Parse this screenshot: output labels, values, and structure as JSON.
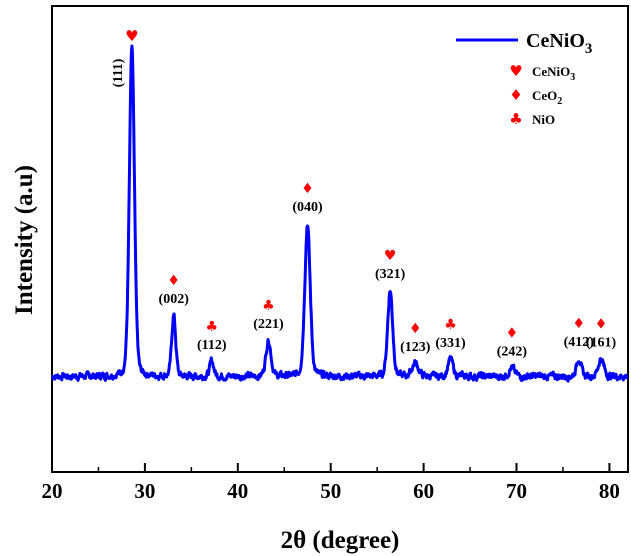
{
  "chart_data": {
    "type": "line",
    "xlabel": "2θ (degree)",
    "ylabel": "Intensity (a.u)",
    "xlim": [
      20,
      82
    ],
    "ylim": [
      0,
      100
    ],
    "xticks": [
      20,
      30,
      40,
      50,
      60,
      70,
      80
    ],
    "y_tick_labels_shown": false,
    "grid": false,
    "legend_placement": "top-right",
    "colors": {
      "series": "#0000ff",
      "marker": "#ff0000",
      "axis": "#000000"
    },
    "series": [
      {
        "name": "CeNiO3",
        "name_main": "CeNiO",
        "name_sub": "3",
        "color": "#0000ff"
      }
    ],
    "baseline": 14,
    "peaks": [
      {
        "x": 28.6,
        "y": 100,
        "width": 0.28
      },
      {
        "x": 33.1,
        "y": 30,
        "width": 0.22
      },
      {
        "x": 37.2,
        "y": 18,
        "width": 0.22
      },
      {
        "x": 43.3,
        "y": 23.5,
        "width": 0.28
      },
      {
        "x": 47.5,
        "y": 54,
        "width": 0.3
      },
      {
        "x": 56.4,
        "y": 36.5,
        "width": 0.28
      },
      {
        "x": 59.1,
        "y": 17.5,
        "width": 0.35
      },
      {
        "x": 62.9,
        "y": 18.5,
        "width": 0.28
      },
      {
        "x": 69.5,
        "y": 16.3,
        "width": 0.3
      },
      {
        "x": 76.7,
        "y": 18.8,
        "width": 0.25
      },
      {
        "x": 79.1,
        "y": 18.7,
        "width": 0.3
      }
    ],
    "annotations": [
      {
        "label": "(111)",
        "x": 28.6,
        "marker": "heart",
        "rotate": true
      },
      {
        "label": "(002)",
        "x": 33.1,
        "marker": "diamond"
      },
      {
        "label": "(112)",
        "x": 37.2,
        "marker": "club"
      },
      {
        "label": "(221)",
        "x": 43.3,
        "marker": "club"
      },
      {
        "label": "(040)",
        "x": 47.5,
        "marker": "diamond"
      },
      {
        "label": "(321)",
        "x": 56.4,
        "marker": "heart"
      },
      {
        "label": "(123)",
        "x": 59.1,
        "marker": "diamond"
      },
      {
        "label": "(331)",
        "x": 62.9,
        "marker": "club"
      },
      {
        "label": "(242)",
        "x": 69.5,
        "marker": "diamond"
      },
      {
        "label": "(412)",
        "x": 76.7,
        "marker": "diamond"
      },
      {
        "label": "(161)",
        "x": 79.1,
        "marker": "diamond"
      }
    ],
    "marker_legend": [
      {
        "marker": "heart",
        "label_main": "CeNiO",
        "label_sub": "3"
      },
      {
        "marker": "diamond",
        "label_main": "CeO",
        "label_sub": "2"
      },
      {
        "marker": "club",
        "label_main": "NiO",
        "label_sub": ""
      }
    ]
  }
}
